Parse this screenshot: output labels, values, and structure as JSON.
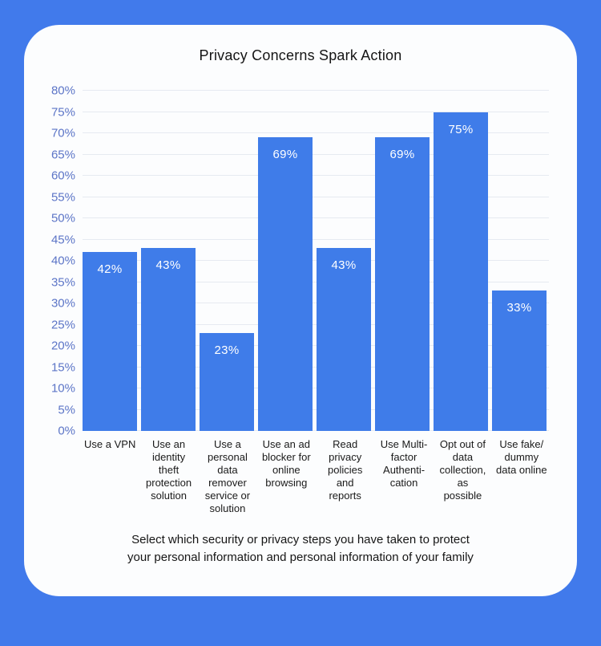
{
  "page": {
    "frame_background": "#417AEB",
    "card_background": "#FCFDFE"
  },
  "chart": {
    "title": "Privacy Concerns Spark Action",
    "caption": "Select which security or privacy steps you have taken to protect\nyour personal information and personal information of your family"
  },
  "chart_data": {
    "type": "bar",
    "title": "Privacy Concerns Spark Action",
    "categories": [
      "Use a VPN",
      "Use an identity theft protection solution",
      "Use a personal data remover service or solution",
      "Use an ad blocker for online browsing",
      "Read privacy policies and reports",
      "Use Multi-factor Authentication",
      "Opt out of data collection, as possible",
      "Use fake/dummy data online"
    ],
    "category_display_lines": [
      [
        "Use a VPN"
      ],
      [
        "Use an",
        "identity",
        "theft",
        "protection",
        "solution"
      ],
      [
        "Use a",
        "personal",
        "data",
        "remover",
        "service or",
        "solution"
      ],
      [
        "Use an ad",
        "blocker for",
        "online",
        "browsing"
      ],
      [
        "Read",
        "privacy",
        "policies",
        "and",
        "reports"
      ],
      [
        "Use Multi-",
        "factor",
        "Authenti-",
        "cation"
      ],
      [
        "Opt out of",
        "data",
        "collection,",
        "as",
        "possible"
      ],
      [
        "Use fake/",
        "dummy",
        "data online"
      ]
    ],
    "values": [
      42,
      43,
      23,
      69,
      43,
      69,
      75,
      33
    ],
    "value_labels": [
      "42%",
      "43%",
      "23%",
      "69%",
      "43%",
      "69%",
      "75%",
      "33%"
    ],
    "xlabel": "",
    "ylabel": "",
    "ylim": [
      0,
      80
    ],
    "ytick_step": 5,
    "ytick_labels": [
      "0%",
      "5%",
      "10%",
      "15%",
      "20%",
      "25%",
      "30%",
      "35%",
      "40%",
      "45%",
      "50%",
      "55%",
      "60%",
      "65%",
      "70%",
      "75%",
      "80%"
    ],
    "grid": true,
    "legend": false,
    "bar_value_label_position": "inside-top",
    "colors": {
      "bar": "#3F7CE9",
      "value_label": "#FFFFFF",
      "ytick_text": "#5C75C7",
      "gridline": "#E6EAF1",
      "title_text": "#151515",
      "xtick_text": "#1A1A1A",
      "caption_text": "#161616"
    }
  }
}
